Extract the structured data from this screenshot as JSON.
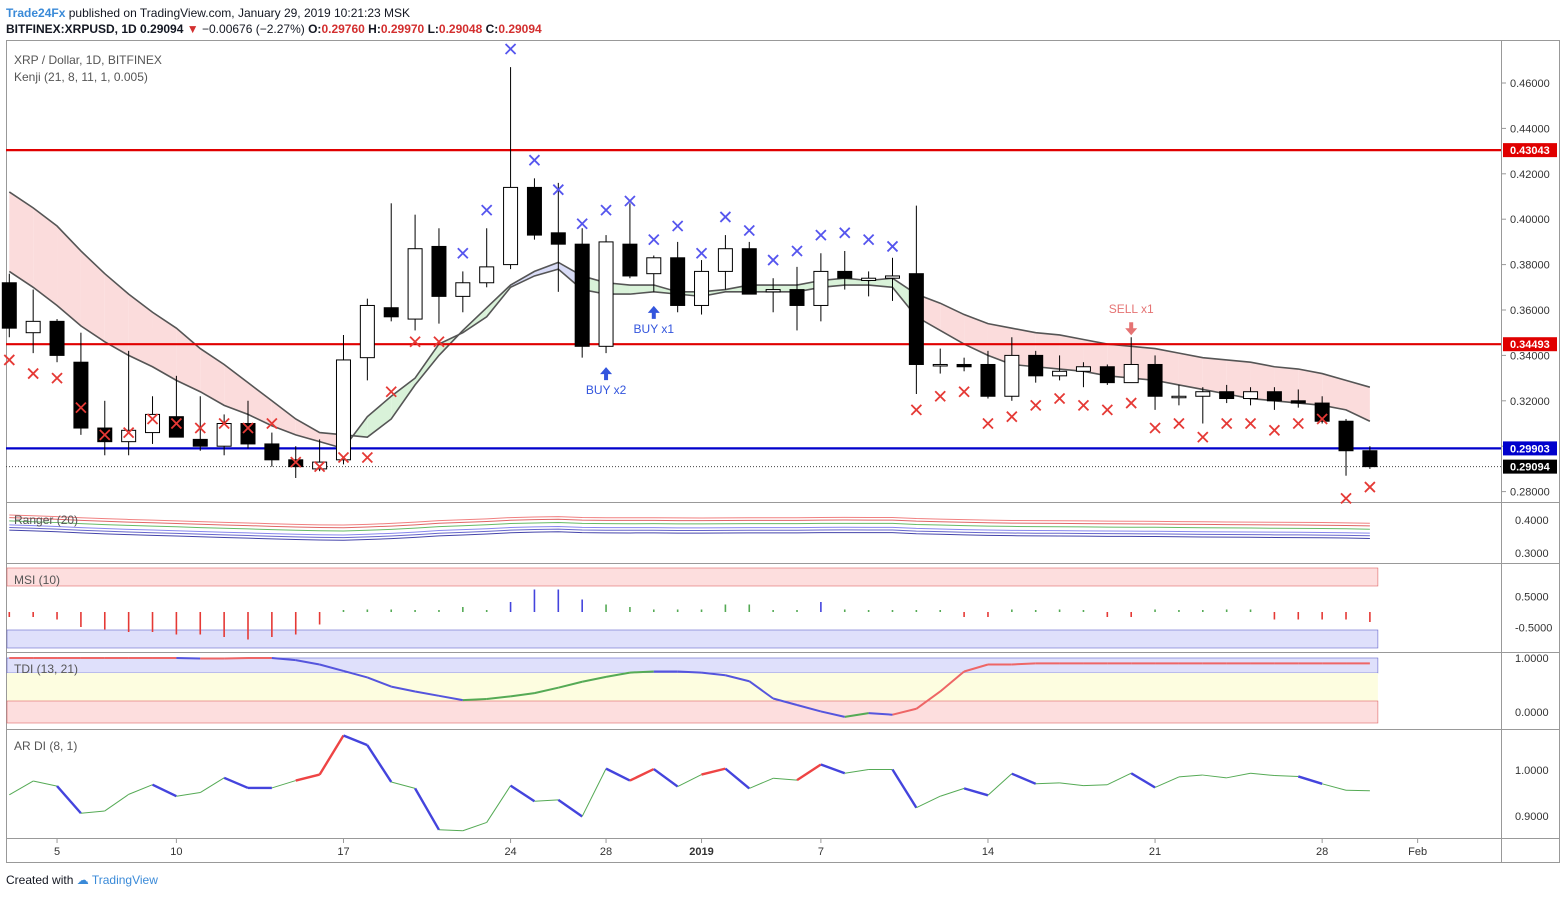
{
  "header": {
    "publisher": "Trade24Fx",
    "published_text": "published on TradingView.com, January 29, 2019 10:21:23 MSK",
    "symbol": "BITFINEX:XRPUSD, 1D",
    "last": "0.29094",
    "change": "−0.00676 (−2.27%)",
    "ohlc": {
      "o_label": "O:",
      "o": "0.29760",
      "h_label": "H:",
      "h": "0.29970",
      "l_label": "L:",
      "l": "0.29048",
      "c_label": "C:",
      "c": "0.29094"
    }
  },
  "legend": {
    "title": "XRP / Dollar, 1D, BITFINEX",
    "kenji": "Kenji (21, 8, 11, 1, 0.005)",
    "ranger": "Ranger (20)",
    "msi": "MSI (10)",
    "tdi": "TDI (13, 21)",
    "ardi": "AR DI (8, 1)"
  },
  "footer": {
    "created_with": "Created with",
    "brand": "TradingView"
  },
  "colors": {
    "bull": "#ffffff",
    "bear": "#000000",
    "hline_red": "#e00000",
    "hline_blue": "#0000cc",
    "cross_red": "#e53935",
    "cross_blue": "#5555ee",
    "buy": "#3355dd",
    "sell": "#e57373"
  },
  "chart_data": {
    "type": "candlestick",
    "dates": [
      "Dec 3",
      "Dec 4",
      "Dec 5",
      "Dec 6",
      "Dec 7",
      "Dec 8",
      "Dec 9",
      "Dec 10",
      "Dec 11",
      "Dec 12",
      "Dec 13",
      "Dec 14",
      "Dec 15",
      "Dec 16",
      "Dec 17",
      "Dec 18",
      "Dec 19",
      "Dec 20",
      "Dec 21",
      "Dec 22",
      "Dec 23",
      "Dec 24",
      "Dec 25",
      "Dec 26",
      "Dec 27",
      "Dec 28",
      "Dec 29",
      "Dec 30",
      "Dec 31",
      "Jan 1",
      "Jan 2",
      "Jan 3",
      "Jan 4",
      "Jan 5",
      "Jan 6",
      "Jan 7",
      "Jan 8",
      "Jan 9",
      "Jan 10",
      "Jan 11",
      "Jan 12",
      "Jan 13",
      "Jan 14",
      "Jan 15",
      "Jan 16",
      "Jan 17",
      "Jan 18",
      "Jan 19",
      "Jan 20",
      "Jan 21",
      "Jan 22",
      "Jan 23",
      "Jan 24",
      "Jan 25",
      "Jan 26",
      "Jan 27",
      "Jan 28",
      "Jan 29"
    ],
    "ohlc": [
      [
        0.372,
        0.376,
        0.348,
        0.352
      ],
      [
        0.35,
        0.369,
        0.341,
        0.355
      ],
      [
        0.355,
        0.356,
        0.337,
        0.34
      ],
      [
        0.337,
        0.35,
        0.305,
        0.308
      ],
      [
        0.308,
        0.32,
        0.296,
        0.302
      ],
      [
        0.302,
        0.342,
        0.296,
        0.307
      ],
      [
        0.306,
        0.322,
        0.301,
        0.314
      ],
      [
        0.313,
        0.331,
        0.304,
        0.304
      ],
      [
        0.303,
        0.322,
        0.298,
        0.3
      ],
      [
        0.3,
        0.314,
        0.296,
        0.31
      ],
      [
        0.31,
        0.32,
        0.299,
        0.301
      ],
      [
        0.301,
        0.306,
        0.291,
        0.294
      ],
      [
        0.294,
        0.3,
        0.286,
        0.291
      ],
      [
        0.29,
        0.303,
        0.289,
        0.293
      ],
      [
        0.294,
        0.349,
        0.292,
        0.338
      ],
      [
        0.339,
        0.365,
        0.329,
        0.362
      ],
      [
        0.361,
        0.407,
        0.355,
        0.357
      ],
      [
        0.356,
        0.402,
        0.351,
        0.387
      ],
      [
        0.388,
        0.396,
        0.354,
        0.366
      ],
      [
        0.366,
        0.377,
        0.359,
        0.372
      ],
      [
        0.372,
        0.396,
        0.37,
        0.379
      ],
      [
        0.38,
        0.467,
        0.378,
        0.414
      ],
      [
        0.414,
        0.418,
        0.391,
        0.393
      ],
      [
        0.394,
        0.416,
        0.368,
        0.389
      ],
      [
        0.389,
        0.396,
        0.339,
        0.344
      ],
      [
        0.344,
        0.393,
        0.341,
        0.39
      ],
      [
        0.389,
        0.407,
        0.374,
        0.375
      ],
      [
        0.376,
        0.384,
        0.368,
        0.383
      ],
      [
        0.383,
        0.39,
        0.359,
        0.362
      ],
      [
        0.362,
        0.382,
        0.358,
        0.377
      ],
      [
        0.377,
        0.393,
        0.369,
        0.387
      ],
      [
        0.387,
        0.39,
        0.367,
        0.367
      ],
      [
        0.368,
        0.374,
        0.359,
        0.369
      ],
      [
        0.369,
        0.379,
        0.351,
        0.362
      ],
      [
        0.362,
        0.385,
        0.355,
        0.377
      ],
      [
        0.377,
        0.386,
        0.369,
        0.374
      ],
      [
        0.373,
        0.377,
        0.366,
        0.374
      ],
      [
        0.374,
        0.383,
        0.364,
        0.375
      ],
      [
        0.376,
        0.406,
        0.323,
        0.336
      ],
      [
        0.336,
        0.343,
        0.332,
        0.336
      ],
      [
        0.336,
        0.339,
        0.333,
        0.335
      ],
      [
        0.336,
        0.342,
        0.321,
        0.322
      ],
      [
        0.322,
        0.348,
        0.32,
        0.34
      ],
      [
        0.34,
        0.342,
        0.328,
        0.331
      ],
      [
        0.331,
        0.34,
        0.329,
        0.333
      ],
      [
        0.333,
        0.337,
        0.326,
        0.335
      ],
      [
        0.335,
        0.336,
        0.327,
        0.328
      ],
      [
        0.328,
        0.348,
        0.328,
        0.336
      ],
      [
        0.336,
        0.34,
        0.316,
        0.322
      ],
      [
        0.322,
        0.327,
        0.318,
        0.322
      ],
      [
        0.322,
        0.326,
        0.31,
        0.324
      ],
      [
        0.324,
        0.327,
        0.319,
        0.321
      ],
      [
        0.321,
        0.326,
        0.318,
        0.324
      ],
      [
        0.324,
        0.326,
        0.316,
        0.32
      ],
      [
        0.32,
        0.325,
        0.317,
        0.319
      ],
      [
        0.319,
        0.322,
        0.31,
        0.311
      ],
      [
        0.311,
        0.312,
        0.287,
        0.298
      ],
      [
        0.298,
        0.3,
        0.29,
        0.291
      ]
    ],
    "cloud_upper": [
      0.412,
      0.405,
      0.397,
      0.386,
      0.376,
      0.367,
      0.359,
      0.352,
      0.343,
      0.336,
      0.328,
      0.32,
      0.312,
      0.306,
      0.305,
      0.304,
      0.312,
      0.327,
      0.34,
      0.351,
      0.361,
      0.371,
      0.377,
      0.381,
      0.375,
      0.372,
      0.371,
      0.371,
      0.368,
      0.368,
      0.369,
      0.371,
      0.371,
      0.371,
      0.373,
      0.374,
      0.373,
      0.374,
      0.367,
      0.363,
      0.358,
      0.354,
      0.352,
      0.35,
      0.349,
      0.347,
      0.345,
      0.344,
      0.343,
      0.341,
      0.339,
      0.338,
      0.337,
      0.335,
      0.334,
      0.332,
      0.329,
      0.326
    ],
    "cloud_lower": [
      0.377,
      0.37,
      0.362,
      0.353,
      0.346,
      0.34,
      0.335,
      0.329,
      0.324,
      0.318,
      0.314,
      0.309,
      0.305,
      0.302,
      0.299,
      0.313,
      0.322,
      0.33,
      0.345,
      0.35,
      0.357,
      0.37,
      0.375,
      0.378,
      0.369,
      0.367,
      0.367,
      0.368,
      0.367,
      0.366,
      0.368,
      0.368,
      0.368,
      0.368,
      0.37,
      0.371,
      0.371,
      0.37,
      0.357,
      0.351,
      0.345,
      0.34,
      0.336,
      0.335,
      0.334,
      0.333,
      0.331,
      0.33,
      0.329,
      0.327,
      0.325,
      0.323,
      0.321,
      0.32,
      0.319,
      0.318,
      0.316,
      0.311
    ],
    "stop_crosses": [
      0.338,
      0.332,
      0.33,
      0.317,
      0.305,
      0.306,
      0.312,
      0.31,
      0.308,
      0.31,
      0.308,
      0.31,
      0.293,
      0.291,
      0.295,
      0.295,
      0.324,
      0.346,
      0.346,
      0.385,
      0.404,
      0.475,
      0.426,
      0.413,
      0.398,
      0.404,
      0.408,
      0.391,
      0.397,
      0.385,
      0.401,
      0.395,
      0.382,
      0.386,
      0.393,
      0.394,
      0.391,
      0.388,
      0.316,
      0.322,
      0.324,
      0.31,
      0.313,
      0.318,
      0.321,
      0.318,
      0.316,
      0.319,
      0.308,
      0.31,
      0.304,
      0.31,
      0.31,
      0.307,
      0.31,
      0.312,
      0.277,
      0.282
    ],
    "stop_cross_colors": [
      "r",
      "r",
      "r",
      "r",
      "r",
      "r",
      "r",
      "r",
      "r",
      "r",
      "r",
      "r",
      "r",
      "r",
      "r",
      "r",
      "r",
      "r",
      "r",
      "b",
      "b",
      "b",
      "b",
      "b",
      "b",
      "b",
      "b",
      "b",
      "b",
      "b",
      "b",
      "b",
      "b",
      "b",
      "b",
      "b",
      "b",
      "b",
      "r",
      "r",
      "r",
      "r",
      "r",
      "r",
      "r",
      "r",
      "r",
      "r",
      "r",
      "r",
      "r",
      "r",
      "r",
      "r",
      "r",
      "r",
      "r",
      "r"
    ],
    "hlines": [
      0.43043,
      0.34493,
      0.29903
    ],
    "price_labels": [
      "0.43043",
      "0.34493",
      "0.29903",
      "0.29094"
    ],
    "y_ticks": [
      "0.46000",
      "0.44000",
      "0.42000",
      "0.40000",
      "0.38000",
      "0.36000",
      "0.34000",
      "0.32000",
      "0.30000",
      "0.28000"
    ],
    "x_ticks": [
      "5",
      "10",
      "17",
      "24",
      "28",
      "2019",
      "7",
      "14",
      "21",
      "28",
      "Feb"
    ],
    "signals": [
      {
        "label": "BUY x2",
        "type": "buy"
      },
      {
        "label": "BUY x1",
        "type": "buy"
      },
      {
        "label": "SELL x1",
        "type": "sell"
      }
    ],
    "ranger_ticks": [
      "0.4000",
      "0.3000"
    ],
    "msi_ticks": [
      "0.5000",
      "-0.5000"
    ],
    "msi_values": [
      -0.1,
      -0.1,
      -0.15,
      -0.3,
      -0.35,
      -0.4,
      -0.4,
      -0.45,
      -0.45,
      -0.5,
      -0.55,
      -0.5,
      -0.45,
      -0.25,
      0.0,
      0.05,
      0.05,
      0.0,
      0.0,
      0.1,
      0.0,
      0.2,
      0.45,
      0.45,
      0.25,
      0.15,
      0.1,
      0.05,
      0.05,
      0.05,
      0.15,
      0.15,
      0.0,
      0.0,
      0.2,
      0.05,
      0.0,
      0.0,
      0.0,
      0.0,
      -0.1,
      -0.1,
      0.05,
      0.0,
      0.05,
      0.0,
      -0.1,
      -0.1,
      0.05,
      0.0,
      0.0,
      0.05,
      0.05,
      -0.15,
      -0.15,
      -0.15,
      -0.15,
      -0.2
    ],
    "tdi_ticks": [
      "1.0000",
      "0.0000"
    ],
    "tdi_values": [
      1.0,
      1.0,
      1.0,
      1.0,
      1.0,
      1.0,
      1.0,
      1.0,
      0.99,
      0.99,
      1.0,
      1.0,
      0.96,
      0.88,
      0.76,
      0.64,
      0.47,
      0.38,
      0.3,
      0.22,
      0.24,
      0.29,
      0.35,
      0.45,
      0.56,
      0.65,
      0.73,
      0.75,
      0.75,
      0.73,
      0.68,
      0.57,
      0.25,
      0.13,
      0.01,
      -0.09,
      -0.02,
      -0.05,
      0.06,
      0.38,
      0.75,
      0.88,
      0.88,
      0.9,
      0.9,
      0.9,
      0.9,
      0.9,
      0.9,
      0.9,
      0.9,
      0.9,
      0.9,
      0.9,
      0.9,
      0.9,
      0.9,
      0.9
    ],
    "ardi_ticks": [
      "1.0000",
      "0.9000"
    ],
    "ardi_values": [
      0.946,
      0.976,
      0.965,
      0.906,
      0.911,
      0.947,
      0.968,
      0.943,
      0.951,
      0.983,
      0.961,
      0.961,
      0.977,
      0.99,
      1.075,
      1.054,
      0.974,
      0.96,
      0.87,
      0.868,
      0.886,
      0.966,
      0.932,
      0.935,
      0.899,
      1.003,
      0.977,
      1.002,
      0.964,
      0.99,
      1.003,
      0.96,
      0.982,
      0.978,
      1.012,
      0.993,
      1.001,
      1.001,
      0.918,
      0.943,
      0.96,
      0.945,
      0.992,
      0.97,
      0.972,
      0.966,
      0.968,
      0.993,
      0.962,
      0.985,
      0.989,
      0.983,
      0.993,
      0.988,
      0.986,
      0.97,
      0.956,
      0.955
    ]
  }
}
